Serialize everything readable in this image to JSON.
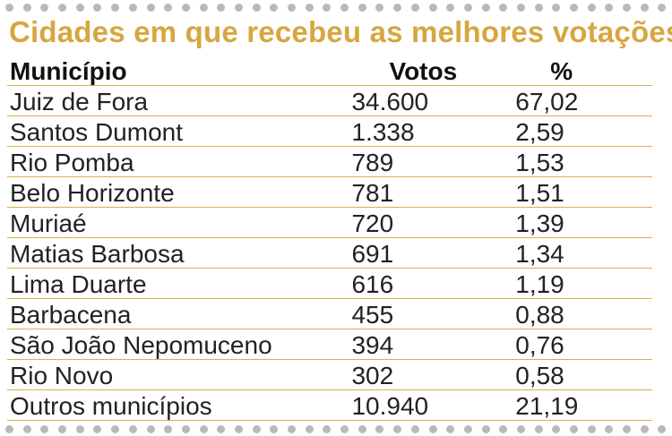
{
  "title": "Cidades em que recebeu as melhores votações",
  "headers": {
    "municipio": "Município",
    "votos": "Votos",
    "percent": "%"
  },
  "rows": [
    {
      "municipio": "Juiz de Fora",
      "votos": "34.600",
      "percent": "67,02"
    },
    {
      "municipio": "Santos Dumont",
      "votos": "1.338",
      "percent": "2,59"
    },
    {
      "municipio": "Rio Pomba",
      "votos": "789",
      "percent": "1,53"
    },
    {
      "municipio": "Belo Horizonte",
      "votos": "781",
      "percent": "1,51"
    },
    {
      "municipio": "Muriaé",
      "votos": "720",
      "percent": "1,39"
    },
    {
      "municipio": "Matias Barbosa",
      "votos": "691",
      "percent": "1,34"
    },
    {
      "municipio": "Lima Duarte",
      "votos": "616",
      "percent": "1,19"
    },
    {
      "municipio": "Barbacena",
      "votos": "455",
      "percent": "0,88"
    },
    {
      "municipio": "São João Nepomuceno",
      "votos": "394",
      "percent": "0,76"
    },
    {
      "municipio": "Rio Novo",
      "votos": "302",
      "percent": "0,58"
    },
    {
      "municipio": "Outros municípios",
      "votos": "10.940",
      "percent": "21,19"
    }
  ],
  "colors": {
    "title": "#d7a640",
    "rule": "#d9b04c",
    "dots": "#b9b9b9"
  }
}
